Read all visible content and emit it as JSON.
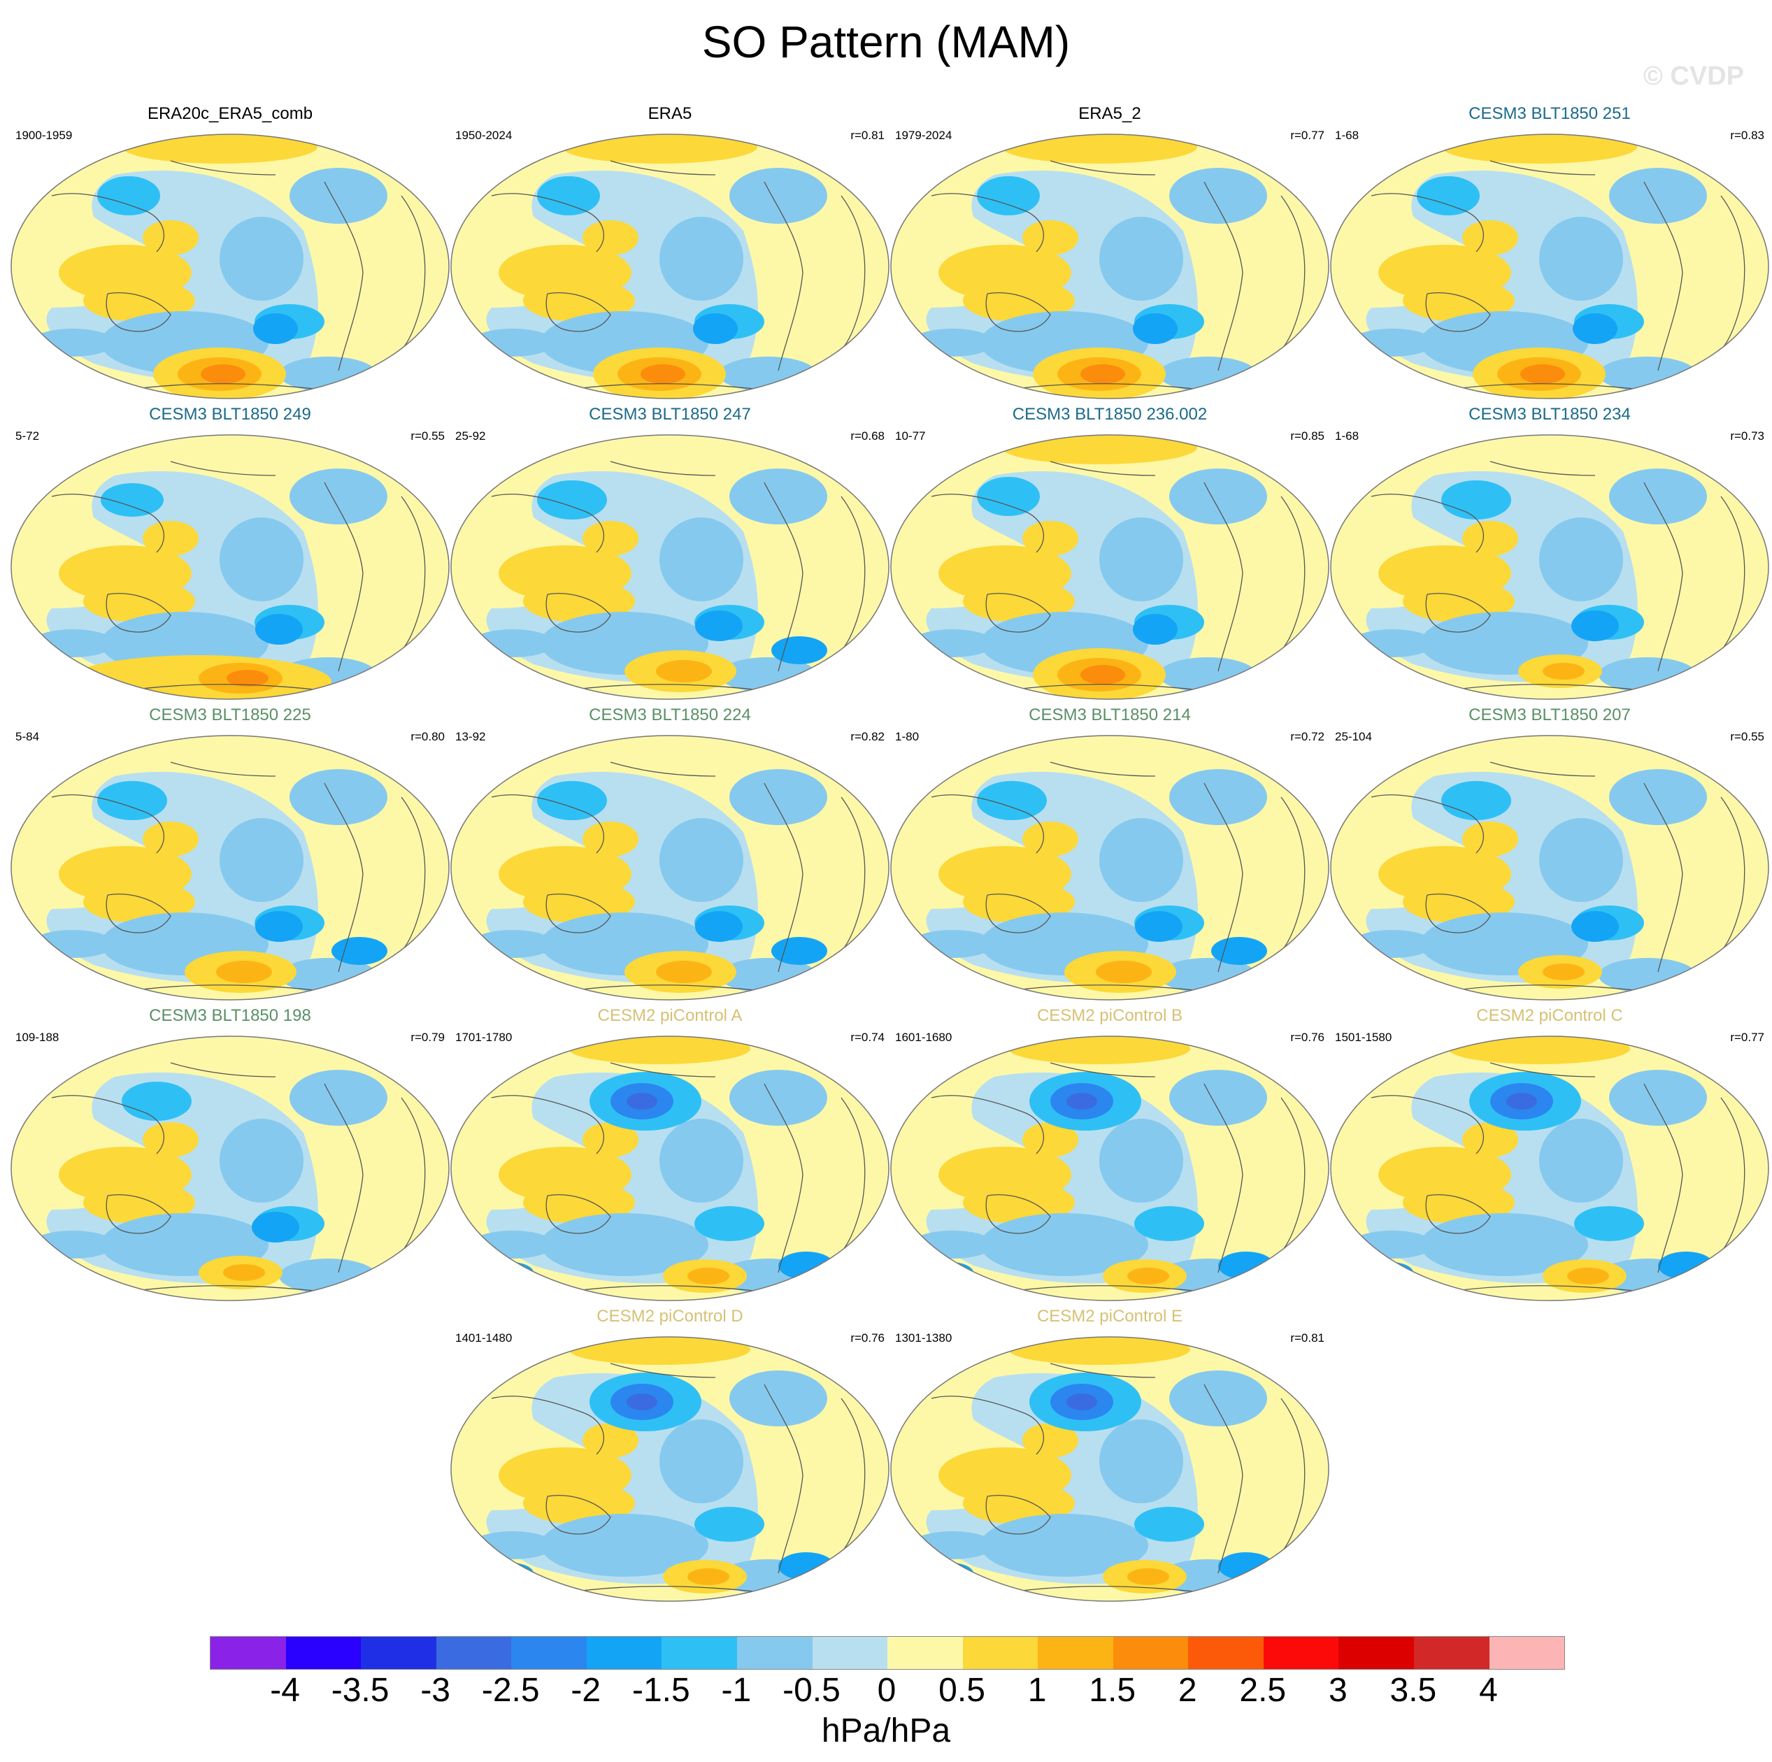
{
  "title": "SO Pattern (MAM)",
  "watermark": "© CVDP",
  "colors": {
    "obs_title": "#000000",
    "cesm3_a": "#1a6a8a",
    "cesm3_b": "#5a8f66",
    "cesm2": "#d6c173",
    "ocean_base": "#b8dff0",
    "coast": "#555555"
  },
  "panels": [
    {
      "title": "ERA20c_ERA5_comb",
      "years": "1900-1959",
      "corr": "",
      "group": "obs",
      "pattern": "sh_strong"
    },
    {
      "title": "ERA5",
      "years": "1950-2024",
      "corr": "r=0.81",
      "group": "obs",
      "pattern": "sh_strong"
    },
    {
      "title": "ERA5_2",
      "years": "1979-2024",
      "corr": "r=0.77",
      "group": "obs",
      "pattern": "sh_strong"
    },
    {
      "title": "CESM3 BLT1850 251",
      "years": "1-68",
      "corr": "r=0.83",
      "group": "cesm3_a",
      "pattern": "sh_strong"
    },
    {
      "title": "CESM3 BLT1850 249",
      "years": "5-72",
      "corr": "r=0.55",
      "group": "cesm3_a",
      "pattern": "sh_wide"
    },
    {
      "title": "CESM3 BLT1850 247",
      "years": "25-92",
      "corr": "r=0.68",
      "group": "cesm3_a",
      "pattern": "sh_mid"
    },
    {
      "title": "CESM3 BLT1850 236.002",
      "years": "10-77",
      "corr": "r=0.85",
      "group": "cesm3_a",
      "pattern": "sh_strong"
    },
    {
      "title": "CESM3 BLT1850 234",
      "years": "1-68",
      "corr": "r=0.73",
      "group": "cesm3_a",
      "pattern": "sh_weak"
    },
    {
      "title": "CESM3 BLT1850 225",
      "years": "5-84",
      "corr": "r=0.80",
      "group": "cesm3_b",
      "pattern": "sh_mid"
    },
    {
      "title": "CESM3 BLT1850 224",
      "years": "13-92",
      "corr": "r=0.82",
      "group": "cesm3_b",
      "pattern": "sh_mid"
    },
    {
      "title": "CESM3 BLT1850 214",
      "years": "1-80",
      "corr": "r=0.72",
      "group": "cesm3_b",
      "pattern": "sh_mid"
    },
    {
      "title": "CESM3 BLT1850 207",
      "years": "25-104",
      "corr": "r=0.55",
      "group": "cesm3_b",
      "pattern": "sh_weak"
    },
    {
      "title": "CESM3 BLT1850 198",
      "years": "109-188",
      "corr": "r=0.79",
      "group": "cesm3_b",
      "pattern": "sh_weak"
    },
    {
      "title": "CESM2 piControl A",
      "years": "1701-1780",
      "corr": "r=0.74",
      "group": "cesm2",
      "pattern": "np_strong"
    },
    {
      "title": "CESM2 piControl B",
      "years": "1601-1680",
      "corr": "r=0.76",
      "group": "cesm2",
      "pattern": "np_strong"
    },
    {
      "title": "CESM2 piControl C",
      "years": "1501-1580",
      "corr": "r=0.77",
      "group": "cesm2",
      "pattern": "np_strong"
    },
    {
      "title": "CESM2 piControl D",
      "years": "1401-1480",
      "corr": "r=0.76",
      "group": "cesm2",
      "pattern": "np_strong"
    },
    {
      "title": "CESM2 piControl E",
      "years": "1301-1380",
      "corr": "r=0.81",
      "group": "cesm2",
      "pattern": "np_strong"
    }
  ],
  "colorbar": {
    "colors": [
      "#8a22e8",
      "#2a00ff",
      "#1f2fe6",
      "#3b6be0",
      "#2b86f0",
      "#14a4f5",
      "#2ec0f5",
      "#86c9ee",
      "#b8dff0",
      "#fdf8a8",
      "#fcd838",
      "#fcb414",
      "#fc8c0c",
      "#fc5a08",
      "#fc0a0a",
      "#dc0000",
      "#d22828",
      "#fcb4b4"
    ],
    "labels": [
      "-4",
      "-3.5",
      "-3",
      "-2.5",
      "-2",
      "-1.5",
      "-1",
      "-0.5",
      "0",
      "0.5",
      "1",
      "1.5",
      "2",
      "2.5",
      "3",
      "3.5",
      "4"
    ],
    "units": "hPa/hPa"
  }
}
